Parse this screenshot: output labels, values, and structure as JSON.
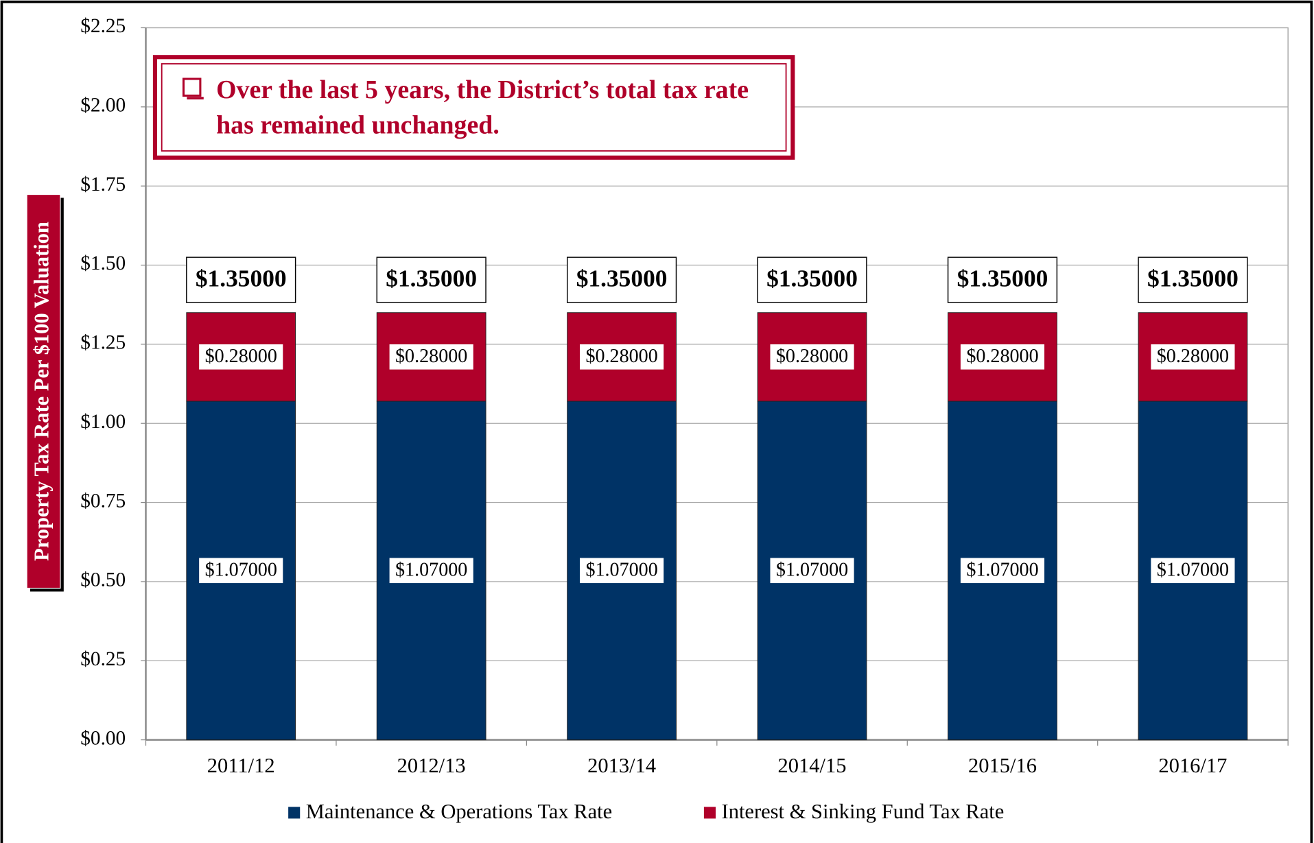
{
  "chart_data": {
    "type": "stacked_bar",
    "annotation": "Over the last 5 years, the District’s total tax rate has remained unchanged.",
    "y_label": "Property Tax Rate Per $100 Valuation",
    "categories": [
      "2011/12",
      "2012/13",
      "2013/14",
      "2014/15",
      "2015/16",
      "2016/17"
    ],
    "series": [
      {
        "name": "Maintenance & Operations Tax Rate",
        "color": "#003366",
        "values": [
          1.07,
          1.07,
          1.07,
          1.07,
          1.07,
          1.07
        ],
        "value_labels": [
          "$1.07000",
          "$1.07000",
          "$1.07000",
          "$1.07000",
          "$1.07000",
          "$1.07000"
        ]
      },
      {
        "name": "Interest & Sinking Fund Tax Rate",
        "color": "#b0002a",
        "values": [
          0.28,
          0.28,
          0.28,
          0.28,
          0.28,
          0.28
        ],
        "value_labels": [
          "$0.28000",
          "$0.28000",
          "$0.28000",
          "$0.28000",
          "$0.28000",
          "$0.28000"
        ]
      }
    ],
    "totals": [
      1.35,
      1.35,
      1.35,
      1.35,
      1.35,
      1.35
    ],
    "total_labels": [
      "$1.35000",
      "$1.35000",
      "$1.35000",
      "$1.35000",
      "$1.35000",
      "$1.35000"
    ],
    "ylim": [
      0,
      2.25
    ],
    "yticks": [
      {
        "value": 0,
        "label": "$0.00"
      },
      {
        "value": 0.25,
        "label": "$0.25"
      },
      {
        "value": 0.5,
        "label": "$0.50"
      },
      {
        "value": 0.75,
        "label": "$0.75"
      },
      {
        "value": 1,
        "label": "$1.00"
      },
      {
        "value": 1.25,
        "label": "$1.25"
      },
      {
        "value": 1.5,
        "label": "$1.50"
      },
      {
        "value": 1.75,
        "label": "$1.75"
      },
      {
        "value": 2,
        "label": "$2.00"
      },
      {
        "value": 2.25,
        "label": "$2.25"
      }
    ],
    "grid": true,
    "legend": "bottom"
  }
}
